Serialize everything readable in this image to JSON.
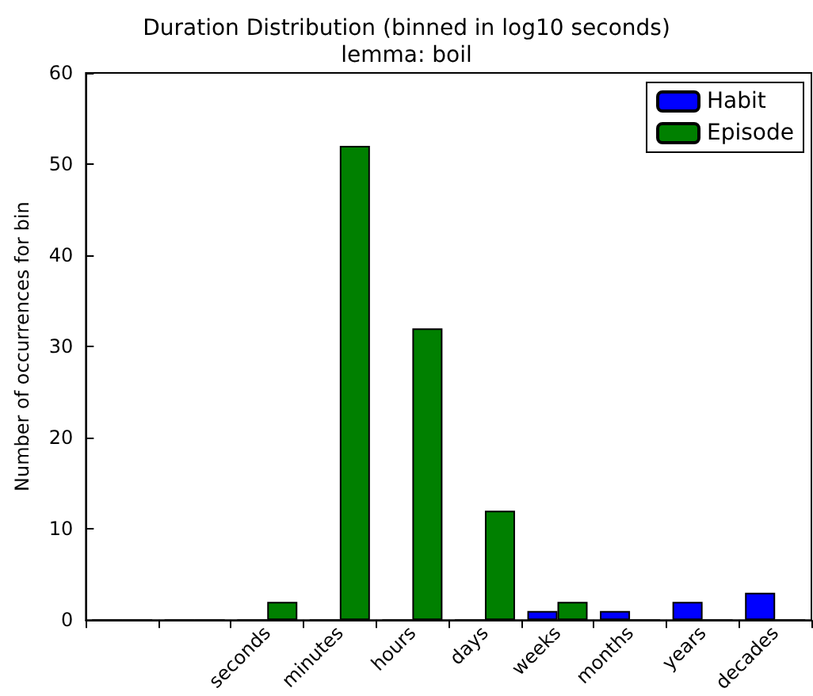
{
  "chart_data": {
    "type": "bar",
    "title": "Duration Distribution (binned in log10 seconds)",
    "subtitle": "lemma: boil",
    "ylabel": "Number of occurrences for bin",
    "categories": [
      null,
      null,
      "seconds",
      "minutes",
      "hours",
      "days",
      "weeks",
      "months",
      "years",
      "decades"
    ],
    "series": [
      {
        "name": "Habit",
        "color": "#0000ff",
        "values": [
          0,
          0,
          0,
          0,
          0,
          0,
          1,
          1,
          2,
          3
        ]
      },
      {
        "name": "Episode",
        "color": "#008000",
        "values": [
          0,
          0,
          2,
          52,
          32,
          12,
          2,
          0,
          0,
          0
        ]
      }
    ],
    "ylim": [
      0,
      60
    ],
    "yticks": [
      0,
      10,
      20,
      30,
      40,
      50,
      60
    ],
    "grid": false,
    "legend": "top right"
  }
}
